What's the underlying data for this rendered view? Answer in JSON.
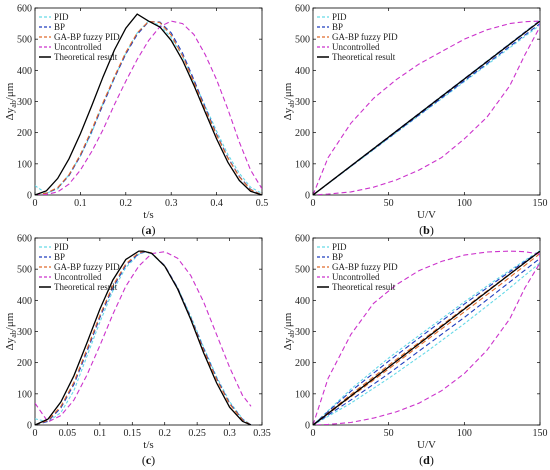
{
  "figure": {
    "panels": [
      "a",
      "b",
      "c",
      "d"
    ]
  },
  "chart_data": [
    {
      "panel": "a",
      "caption_open": "(",
      "caption_letter": "a",
      "caption_close": ")",
      "type": "line",
      "xlabel": "t/s",
      "ylabel_main": "Δy",
      "ylabel_sub": "ab",
      "ylabel_unit": "/μm",
      "xlim": [
        0,
        0.5
      ],
      "ylim": [
        0,
        600
      ],
      "xticks": [
        0,
        0.1,
        0.2,
        0.3,
        0.4,
        0.5
      ],
      "yticks": [
        0,
        100,
        200,
        300,
        400,
        500,
        600
      ],
      "grid": false,
      "legend": "top-left",
      "series": [
        {
          "name": "PID",
          "color": "#66d9e8",
          "dash": "3,2",
          "x": [
            0,
            0.025,
            0.05,
            0.075,
            0.1,
            0.125,
            0.15,
            0.175,
            0.2,
            0.225,
            0.25,
            0.275,
            0.3,
            0.325,
            0.35,
            0.375,
            0.4,
            0.425,
            0.45,
            0.475,
            0.5
          ],
          "y": [
            30,
            5,
            20,
            65,
            125,
            200,
            295,
            375,
            455,
            520,
            558,
            545,
            505,
            445,
            365,
            285,
            205,
            130,
            70,
            25,
            5
          ]
        },
        {
          "name": "BP",
          "color": "#1f3fbf",
          "dash": "5,3",
          "x": [
            0,
            0.025,
            0.05,
            0.075,
            0.1,
            0.125,
            0.15,
            0.175,
            0.2,
            0.225,
            0.25,
            0.275,
            0.3,
            0.325,
            0.35,
            0.375,
            0.4,
            0.425,
            0.45,
            0.475,
            0.5
          ],
          "y": [
            0,
            5,
            22,
            62,
            125,
            205,
            290,
            375,
            452,
            515,
            556,
            555,
            520,
            455,
            370,
            280,
            195,
            120,
            60,
            18,
            0
          ]
        },
        {
          "name": "GA-BP fuzzy PID",
          "color": "#e06b2a",
          "dash": "5,3",
          "x": [
            0,
            0.025,
            0.05,
            0.075,
            0.1,
            0.125,
            0.15,
            0.175,
            0.2,
            0.225,
            0.25,
            0.275,
            0.3,
            0.325,
            0.35,
            0.375,
            0.4,
            0.425,
            0.45,
            0.475,
            0.5
          ],
          "y": [
            0,
            6,
            24,
            65,
            130,
            210,
            297,
            380,
            458,
            520,
            557,
            553,
            513,
            446,
            362,
            275,
            192,
            118,
            58,
            17,
            0
          ]
        },
        {
          "name": "Uncontrolled",
          "color": "#cc33cc",
          "dash": "5,3",
          "x": [
            0,
            0.025,
            0.05,
            0.075,
            0.1,
            0.125,
            0.15,
            0.175,
            0.2,
            0.225,
            0.25,
            0.275,
            0.3,
            0.325,
            0.35,
            0.375,
            0.4,
            0.425,
            0.45,
            0.475,
            0.5
          ],
          "y": [
            0,
            2,
            10,
            35,
            80,
            140,
            210,
            290,
            365,
            435,
            495,
            540,
            558,
            550,
            515,
            450,
            370,
            275,
            170,
            80,
            20
          ]
        },
        {
          "name": "Theoretical result",
          "color": "#000000",
          "dash": "",
          "x": [
            0,
            0.025,
            0.05,
            0.075,
            0.1,
            0.125,
            0.15,
            0.175,
            0.2,
            0.225,
            0.25,
            0.275,
            0.3,
            0.325,
            0.35,
            0.375,
            0.4,
            0.425,
            0.45,
            0.475,
            0.5
          ],
          "y": [
            0,
            13.6,
            53.3,
            116.1,
            196.4,
            287.0,
            379.6,
            465.3,
            535.1,
            580.5,
            558,
            539,
            496,
            432,
            352,
            265,
            180,
            105,
            47,
            12,
            0
          ]
        }
      ]
    },
    {
      "panel": "b",
      "caption_open": "(",
      "caption_letter": "b",
      "caption_close": ")",
      "type": "line",
      "xlabel": "U/V",
      "ylabel_main": "Δy",
      "ylabel_sub": "ab",
      "ylabel_unit": "/μm",
      "xlim": [
        0,
        150
      ],
      "ylim": [
        0,
        600
      ],
      "xticks": [
        0,
        50,
        100,
        150
      ],
      "yticks": [
        0,
        100,
        200,
        300,
        400,
        500,
        600
      ],
      "grid": false,
      "legend": "top-left",
      "series": [
        {
          "name": "PID",
          "color": "#66d9e8",
          "dash": "3,2",
          "x": [
            0,
            150,
            150,
            0
          ],
          "y": [
            0,
            560,
            545,
            0
          ]
        },
        {
          "name": "BP",
          "color": "#1f3fbf",
          "dash": "5,3",
          "x": [
            0,
            150,
            150,
            0
          ],
          "y": [
            0,
            560,
            550,
            0
          ]
        },
        {
          "name": "GA-BP fuzzy PID",
          "color": "#e06b2a",
          "dash": "5,3",
          "x": [
            0,
            150
          ],
          "y": [
            0,
            558
          ]
        },
        {
          "name": "Uncontrolled",
          "color": "#cc33cc",
          "dash": "5,3",
          "x": [
            0,
            10,
            25,
            40,
            55,
            70,
            85,
            100,
            115,
            130,
            140,
            150,
            150,
            140,
            130,
            115,
            100,
            85,
            70,
            55,
            40,
            25,
            10,
            0
          ],
          "y": [
            0,
            120,
            230,
            310,
            370,
            420,
            460,
            500,
            530,
            550,
            556,
            558,
            540,
            450,
            350,
            250,
            180,
            120,
            80,
            48,
            25,
            10,
            3,
            0
          ]
        },
        {
          "name": "Theoretical result",
          "color": "#000000",
          "dash": "",
          "x": [
            0,
            150
          ],
          "y": [
            0,
            558
          ]
        }
      ]
    },
    {
      "panel": "c",
      "caption_open": "(",
      "caption_letter": "c",
      "caption_close": ")",
      "type": "line",
      "xlabel": "t/s",
      "ylabel_main": "Δy",
      "ylabel_sub": "ab",
      "ylabel_unit": "/μm",
      "xlim": [
        0,
        0.35
      ],
      "ylim": [
        0,
        600
      ],
      "xticks": [
        0,
        0.05,
        0.1,
        0.15,
        0.2,
        0.25,
        0.3,
        0.35
      ],
      "yticks": [
        0,
        100,
        200,
        300,
        400,
        500,
        600
      ],
      "grid": false,
      "legend": "top-left",
      "series": [
        {
          "name": "PID",
          "color": "#66d9e8",
          "dash": "3,2",
          "x": [
            0,
            0.02,
            0.04,
            0.06,
            0.08,
            0.1,
            0.12,
            0.14,
            0.16,
            0.17,
            0.18,
            0.2,
            0.22,
            0.24,
            0.26,
            0.28,
            0.3,
            0.32,
            0.333
          ],
          "y": [
            20,
            10,
            40,
            110,
            220,
            330,
            430,
            505,
            548,
            555,
            550,
            510,
            440,
            350,
            250,
            155,
            75,
            20,
            0
          ]
        },
        {
          "name": "BP",
          "color": "#1f3fbf",
          "dash": "5,3",
          "x": [
            0,
            0.02,
            0.04,
            0.06,
            0.08,
            0.1,
            0.12,
            0.14,
            0.16,
            0.17,
            0.18,
            0.2,
            0.22,
            0.24,
            0.26,
            0.28,
            0.3,
            0.32,
            0.333
          ],
          "y": [
            0,
            12,
            55,
            130,
            235,
            345,
            440,
            512,
            550,
            556,
            550,
            512,
            440,
            345,
            245,
            150,
            70,
            18,
            0
          ]
        },
        {
          "name": "GA-BP fuzzy PID",
          "color": "#e06b2a",
          "dash": "5,3",
          "x": [
            0,
            0.02,
            0.04,
            0.06,
            0.08,
            0.1,
            0.12,
            0.14,
            0.16,
            0.17,
            0.18,
            0.2,
            0.22,
            0.24,
            0.26,
            0.28,
            0.3,
            0.32,
            0.333
          ],
          "y": [
            0,
            15,
            60,
            137,
            243,
            352,
            447,
            517,
            553,
            557,
            552,
            510,
            437,
            342,
            240,
            146,
            67,
            16,
            0
          ]
        },
        {
          "name": "Uncontrolled",
          "color": "#cc33cc",
          "dash": "5,3",
          "x": [
            0,
            0.02,
            0.04,
            0.06,
            0.08,
            0.1,
            0.12,
            0.14,
            0.16,
            0.18,
            0.2,
            0.22,
            0.24,
            0.26,
            0.28,
            0.3,
            0.32,
            0.333
          ],
          "y": [
            70,
            10,
            30,
            80,
            160,
            255,
            355,
            445,
            510,
            550,
            556,
            535,
            480,
            395,
            290,
            185,
            95,
            60
          ]
        },
        {
          "name": "Theoretical result",
          "color": "#000000",
          "dash": "",
          "x": [
            0,
            0.02,
            0.04,
            0.06,
            0.08,
            0.1,
            0.12,
            0.14,
            0.16,
            0.167,
            0.18,
            0.2,
            0.22,
            0.24,
            0.26,
            0.28,
            0.3,
            0.32,
            0.333
          ],
          "y": [
            0,
            19,
            74,
            158,
            263,
            372,
            465,
            531,
            558,
            558,
            551,
            510,
            436,
            339,
            232,
            135,
            57,
            12,
            0
          ]
        }
      ]
    },
    {
      "panel": "d",
      "caption_open": "(",
      "caption_letter": "d",
      "caption_close": ")",
      "type": "line",
      "xlabel": "U/V",
      "ylabel_main": "Δy",
      "ylabel_sub": "ab",
      "ylabel_unit": "/μm",
      "xlim": [
        0,
        150
      ],
      "ylim": [
        0,
        600
      ],
      "xticks": [
        0,
        50,
        100,
        150
      ],
      "yticks": [
        0,
        100,
        200,
        300,
        400,
        500,
        600
      ],
      "grid": false,
      "legend": "top-left",
      "series": [
        {
          "name": "PID",
          "color": "#66d9e8",
          "dash": "3,2",
          "x": [
            0,
            25,
            50,
            75,
            100,
            125,
            150,
            150,
            125,
            100,
            75,
            50,
            25,
            0
          ],
          "y": [
            0,
            115,
            215,
            305,
            395,
            480,
            560,
            520,
            420,
            325,
            235,
            150,
            70,
            0
          ]
        },
        {
          "name": "BP",
          "color": "#1f3fbf",
          "dash": "5,3",
          "x": [
            0,
            25,
            50,
            75,
            100,
            125,
            150,
            150,
            125,
            100,
            75,
            50,
            25,
            0
          ],
          "y": [
            0,
            108,
            205,
            297,
            388,
            475,
            558,
            535,
            440,
            345,
            255,
            165,
            80,
            0
          ]
        },
        {
          "name": "GA-BP fuzzy PID",
          "color": "#e06b2a",
          "dash": "5,3",
          "x": [
            0,
            25,
            50,
            75,
            100,
            125,
            150,
            150,
            125,
            100,
            75,
            50,
            25,
            0
          ],
          "y": [
            0,
            98,
            192,
            283,
            375,
            467,
            557,
            550,
            455,
            363,
            272,
            180,
            90,
            0
          ]
        },
        {
          "name": "Uncontrolled",
          "color": "#cc33cc",
          "dash": "5,3",
          "x": [
            0,
            10,
            25,
            40,
            55,
            70,
            85,
            100,
            115,
            130,
            140,
            150,
            150,
            140,
            130,
            115,
            100,
            85,
            70,
            55,
            40,
            25,
            10,
            0
          ],
          "y": [
            0,
            150,
            290,
            390,
            450,
            495,
            525,
            545,
            555,
            558,
            556,
            548,
            520,
            440,
            340,
            240,
            165,
            110,
            70,
            42,
            22,
            8,
            2,
            0
          ]
        },
        {
          "name": "Theoretical result",
          "color": "#000000",
          "dash": "",
          "x": [
            0,
            150
          ],
          "y": [
            0,
            558
          ]
        }
      ]
    }
  ]
}
